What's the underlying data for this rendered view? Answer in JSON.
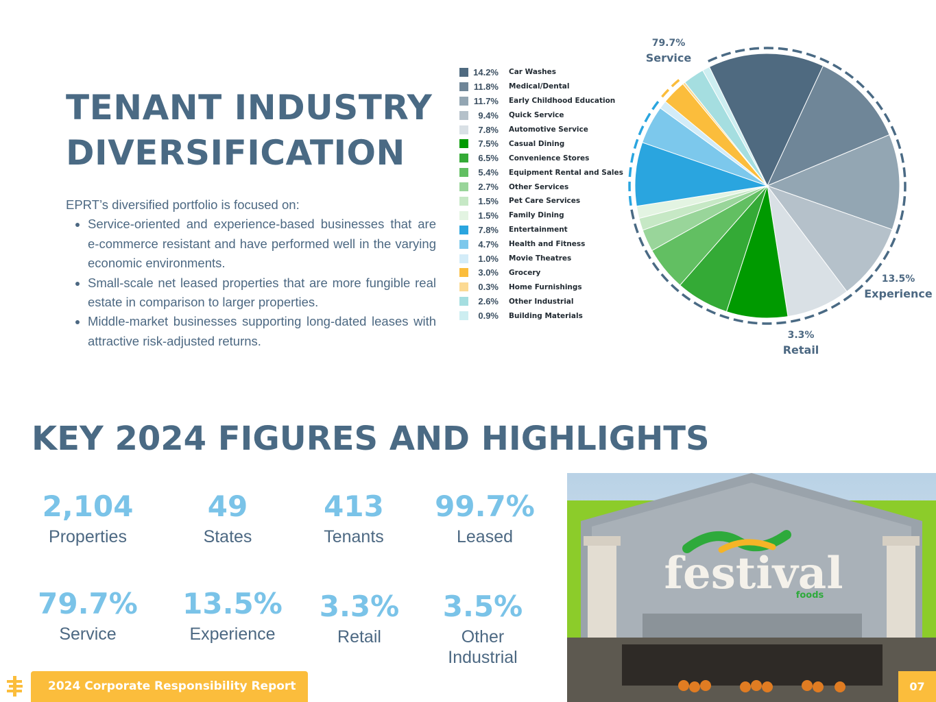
{
  "section": {
    "title_line1": "TENANT INDUSTRY",
    "title_line2": "DIVERSIFICATION",
    "intro": "EPRT’s diversified portfolio is focused on:",
    "bullets": [
      "Service-oriented and experience-based businesses that are e-commerce resistant and have performed well in the varying economic environments.",
      "Small-scale net leased properties that are more fungible real estate in comparison to larger properties.",
      "Middle-market businesses supporting long-dated leases with attractive risk-adjusted returns."
    ]
  },
  "chart_data": {
    "type": "pie",
    "title": "",
    "unit": "%",
    "slices": [
      {
        "label": "Car Washes",
        "pct_label": "14.2%",
        "value": 14.2,
        "color": "#4f6a80"
      },
      {
        "label": "Medical/Dental",
        "pct_label": "11.8%",
        "value": 11.8,
        "color": "#6f8698"
      },
      {
        "label": "Early Childhood Education",
        "pct_label": "11.7%",
        "value": 11.7,
        "color": "#93a6b3"
      },
      {
        "label": "Quick Service",
        "pct_label": "9.4%",
        "value": 9.4,
        "color": "#b5c1ca"
      },
      {
        "label": "Automotive Service",
        "pct_label": "7.8%",
        "value": 7.8,
        "color": "#d9e0e5"
      },
      {
        "label": "Casual Dining",
        "pct_label": "7.5%",
        "value": 7.5,
        "color": "#009a00"
      },
      {
        "label": "Convenience Stores",
        "pct_label": "6.5%",
        "value": 6.5,
        "color": "#34aa36"
      },
      {
        "label": "Equipment Rental and Sales",
        "pct_label": "5.4%",
        "value": 5.4,
        "color": "#62bf62"
      },
      {
        "label": "Other Services",
        "pct_label": "2.7%",
        "value": 2.7,
        "color": "#99d59a"
      },
      {
        "label": "Pet Care Services",
        "pct_label": "1.5%",
        "value": 1.5,
        "color": "#c6e8c5"
      },
      {
        "label": "Family Dining",
        "pct_label": "1.5%",
        "value": 1.5,
        "color": "#e3f4e2"
      },
      {
        "label": "Entertainment",
        "pct_label": "7.8%",
        "value": 7.8,
        "color": "#2aa5df"
      },
      {
        "label": "Health and Fitness",
        "pct_label": "4.7%",
        "value": 4.7,
        "color": "#7cc8ec"
      },
      {
        "label": "Movie Theatres",
        "pct_label": "1.0%",
        "value": 1.0,
        "color": "#d3ecf8"
      },
      {
        "label": "Grocery",
        "pct_label": "3.0%",
        "value": 3.0,
        "color": "#fbbd3c"
      },
      {
        "label": "Home Furnishings",
        "pct_label": "0.3%",
        "value": 0.3,
        "color": "#fcda93"
      },
      {
        "label": "Other Industrial",
        "pct_label": "2.6%",
        "value": 2.6,
        "color": "#a5dee0"
      },
      {
        "label": "Building Materials",
        "pct_label": "0.9%",
        "value": 0.9,
        "color": "#cdeef1"
      }
    ],
    "groups": [
      {
        "pct": "79.7%",
        "name": "Service",
        "color": "#4a6a84",
        "first": 0,
        "last": 10
      },
      {
        "pct": "13.5%",
        "name": "Experience",
        "color": "#2aa5df",
        "first": 11,
        "last": 13
      },
      {
        "pct": "3.3%",
        "name": "Retail",
        "color": "#fbbd3c",
        "first": 14,
        "last": 15
      }
    ]
  },
  "highlights": {
    "title": "KEY 2024 FIGURES AND HIGHLIGHTS",
    "figures": [
      {
        "value": "2,104",
        "label": "Properties"
      },
      {
        "value": "49",
        "label": "States"
      },
      {
        "value": "413",
        "label": "Tenants"
      },
      {
        "value": "99.7%",
        "label": "Leased"
      },
      {
        "value": "79.7%",
        "label": "Service"
      },
      {
        "value": "13.5%",
        "label": "Experience"
      },
      {
        "value": "3.3%",
        "label": "Retail"
      },
      {
        "value": "3.5%",
        "label_line1": "Other",
        "label_line2": "Industrial"
      }
    ]
  },
  "photo": {
    "sign_text": "festival",
    "sign_subtext": "foods"
  },
  "footer": {
    "report": "2024 Corporate Responsibility Report",
    "page": "07"
  },
  "colors": {
    "heading": "#4a6a84",
    "figure": "#7ac3e8",
    "accent": "#fbbd3c"
  }
}
